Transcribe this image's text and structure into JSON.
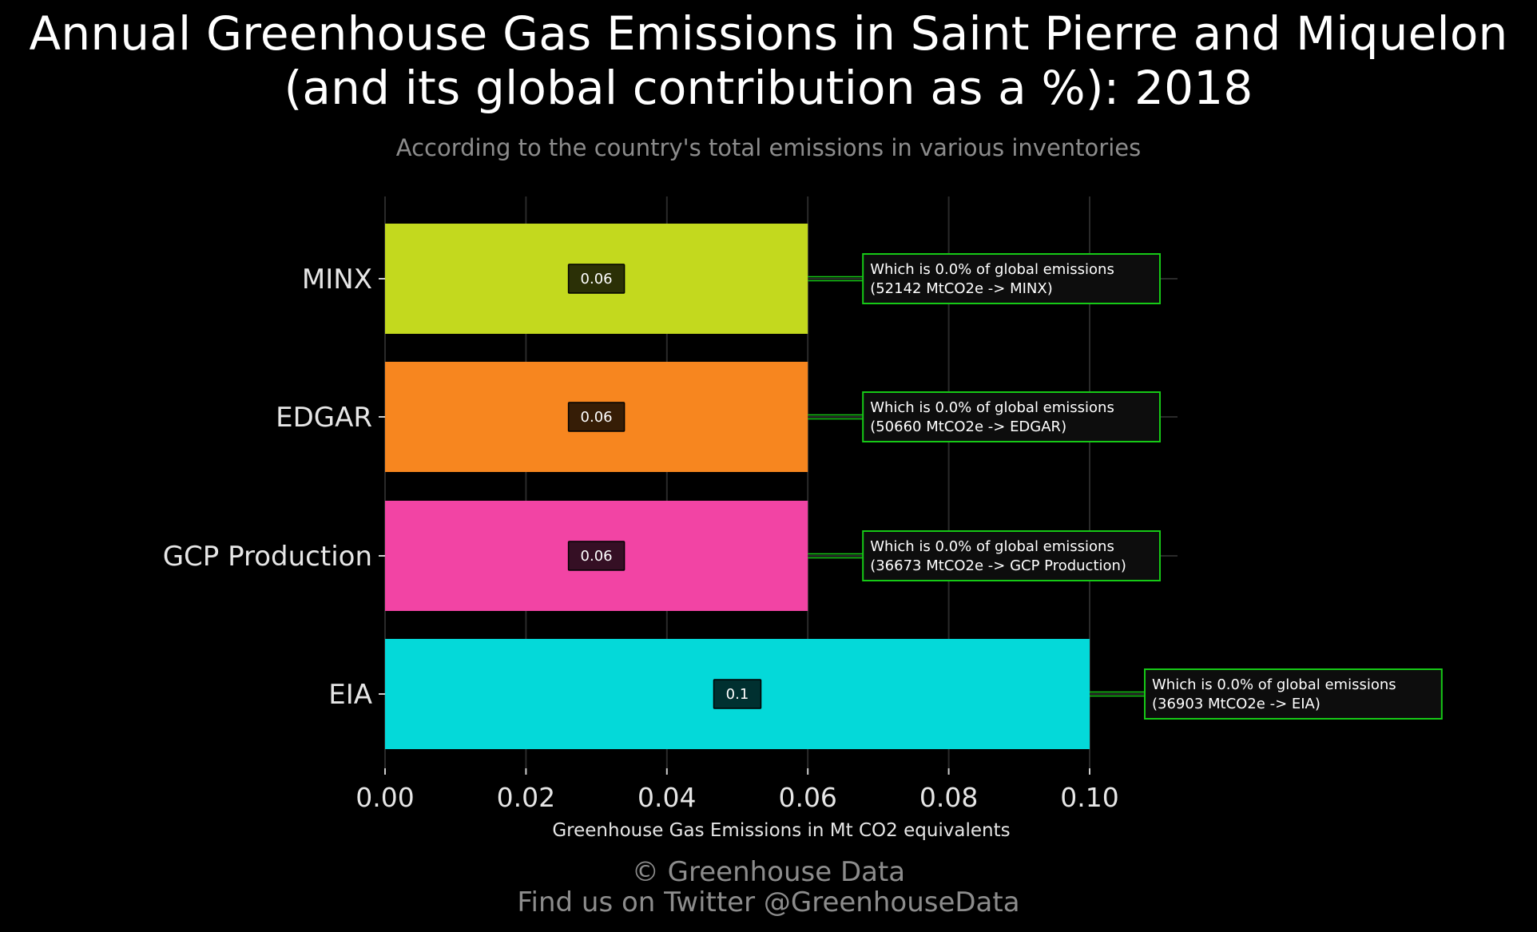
{
  "chart_data": {
    "type": "bar",
    "orientation": "horizontal",
    "title_line1": "Annual Greenhouse Gas Emissions in Saint Pierre and Miquelon",
    "title_line2": "(and its global contribution as a %): 2018",
    "subtitle": "According to the country's total emissions in various inventories",
    "xlabel": "Greenhouse Gas Emissions in Mt CO2 equivalents",
    "ylabel": "",
    "xlim": [
      0,
      0.1
    ],
    "x_ticks": [
      "0.00",
      "0.02",
      "0.04",
      "0.06",
      "0.08",
      "0.10"
    ],
    "grid": true,
    "categories": [
      "MINX",
      "EDGAR",
      "GCP Production",
      "EIA"
    ],
    "values": [
      0.06,
      0.06,
      0.06,
      0.1
    ],
    "value_labels": [
      "0.06",
      "0.06",
      "0.06",
      "0.1"
    ],
    "colors": [
      "#c3d91e",
      "#f7861f",
      "#f244a4",
      "#04d9d9"
    ],
    "annotations": [
      {
        "line1": "Which is 0.0% of global emissions",
        "line2": "(52142 MtCO2e -> MINX)"
      },
      {
        "line1": "Which is 0.0% of global emissions",
        "line2": "(50660 MtCO2e -> EDGAR)"
      },
      {
        "line1": "Which is 0.0% of global emissions",
        "line2": "(36673 MtCO2e -> GCP Production)"
      },
      {
        "line1": "Which is 0.0% of global emissions",
        "line2": "(36903 MtCO2e -> EIA)"
      }
    ],
    "annotation_border_color": "#16c916"
  },
  "footer": {
    "line1": "© Greenhouse Data",
    "line2": "Find us on Twitter @GreenhouseData"
  }
}
